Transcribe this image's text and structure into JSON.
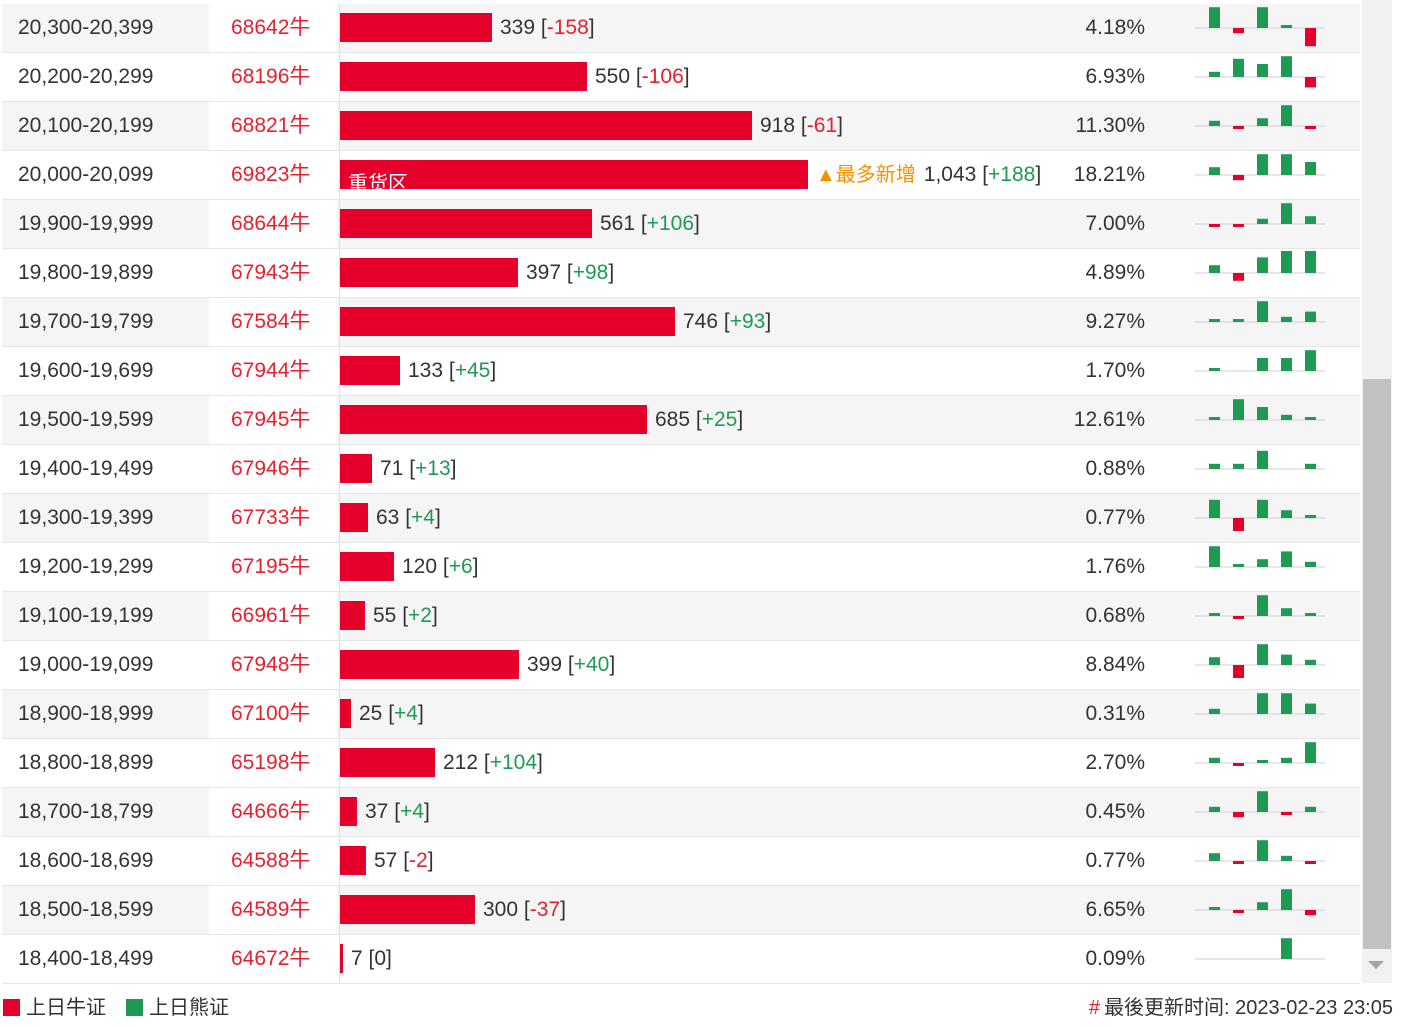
{
  "colors": {
    "bull": "#e4002b",
    "bear": "#1e9a54",
    "hot": "#f29200"
  },
  "heavy_zone_label": "重货区",
  "hot_label": "▲最多新增",
  "legend": {
    "bull_label": "上日牛证",
    "bear_label": "上日熊证"
  },
  "footer": {
    "hash": "#",
    "updated_label": "最後更新时间:",
    "updated_time": "2023-02-23 23:05"
  },
  "max_count": 1043,
  "rows": [
    {
      "range": "20,300-20,399",
      "code": "68642牛",
      "count_text": "339",
      "count": 339,
      "change": "-158",
      "pct": "4.18%",
      "spark": [
        8,
        -2,
        8,
        1,
        -7
      ]
    },
    {
      "range": "20,200-20,299",
      "code": "68196牛",
      "count_text": "550",
      "count": 550,
      "change": "-106",
      "pct": "6.93%",
      "spark": [
        2,
        7,
        5,
        8,
        -4
      ]
    },
    {
      "range": "20,100-20,199",
      "code": "68821牛",
      "count_text": "918",
      "count": 918,
      "change": "-61",
      "pct": "11.30%",
      "spark": [
        2,
        -1,
        3,
        8,
        -1
      ]
    },
    {
      "range": "20,000-20,099",
      "code": "69823牛",
      "count_text": "1,043",
      "count": 1043,
      "change": "+188",
      "pct": "18.21%",
      "spark": [
        3,
        -2,
        8,
        8,
        5
      ],
      "heavy": true,
      "hot": true
    },
    {
      "range": "19,900-19,999",
      "code": "68644牛",
      "count_text": "561",
      "count": 561,
      "change": "+106",
      "pct": "7.00%",
      "spark": [
        -1,
        -1,
        2,
        8,
        3
      ]
    },
    {
      "range": "19,800-19,899",
      "code": "67943牛",
      "count_text": "397",
      "count": 397,
      "change": "+98",
      "pct": "4.89%",
      "spark": [
        3,
        -3,
        6,
        9,
        9
      ]
    },
    {
      "range": "19,700-19,799",
      "code": "67584牛",
      "count_text": "746",
      "count": 746,
      "change": "+93",
      "pct": "9.27%",
      "spark": [
        1,
        1,
        8,
        2,
        4
      ]
    },
    {
      "range": "19,600-19,699",
      "code": "67944牛",
      "count_text": "133",
      "count": 133,
      "change": "+45",
      "pct": "1.70%",
      "spark": [
        1,
        0,
        5,
        5,
        8
      ]
    },
    {
      "range": "19,500-19,599",
      "code": "67945牛",
      "count_text": "685",
      "count": 685,
      "change": "+25",
      "pct": "12.61%",
      "spark": [
        1,
        8,
        5,
        2,
        1
      ]
    },
    {
      "range": "19,400-19,499",
      "code": "67946牛",
      "count_text": "71",
      "count": 71,
      "change": "+13",
      "pct": "0.88%",
      "spark": [
        2,
        2,
        7,
        0,
        2
      ]
    },
    {
      "range": "19,300-19,399",
      "code": "67733牛",
      "count_text": "63",
      "count": 63,
      "change": "+4",
      "pct": "0.77%",
      "spark": [
        7,
        -5,
        7,
        3,
        1
      ]
    },
    {
      "range": "19,200-19,299",
      "code": "67195牛",
      "count_text": "120",
      "count": 120,
      "change": "+6",
      "pct": "1.76%",
      "spark": [
        8,
        1,
        3,
        6,
        2
      ]
    },
    {
      "range": "19,100-19,199",
      "code": "66961牛",
      "count_text": "55",
      "count": 55,
      "change": "+2",
      "pct": "0.68%",
      "spark": [
        1,
        -1,
        8,
        3,
        1
      ]
    },
    {
      "range": "19,000-19,099",
      "code": "67948牛",
      "count_text": "399",
      "count": 399,
      "change": "+40",
      "pct": "8.84%",
      "spark": [
        3,
        -5,
        8,
        4,
        2
      ]
    },
    {
      "range": "18,900-18,999",
      "code": "67100牛",
      "count_text": "25",
      "count": 25,
      "change": "+4",
      "pct": "0.31%",
      "spark": [
        2,
        0,
        8,
        8,
        4
      ]
    },
    {
      "range": "18,800-18,899",
      "code": "65198牛",
      "count_text": "212",
      "count": 212,
      "change": "+104",
      "pct": "2.70%",
      "spark": [
        2,
        -1,
        1,
        2,
        8
      ]
    },
    {
      "range": "18,700-18,799",
      "code": "64666牛",
      "count_text": "37",
      "count": 37,
      "change": "+4",
      "pct": "0.45%",
      "spark": [
        2,
        -2,
        8,
        -1,
        2
      ]
    },
    {
      "range": "18,600-18,699",
      "code": "64588牛",
      "count_text": "57",
      "count": 57,
      "change": "-2",
      "pct": "0.77%",
      "spark": [
        3,
        -1,
        8,
        2,
        -1
      ]
    },
    {
      "range": "18,500-18,599",
      "code": "64589牛",
      "count_text": "300",
      "count": 300,
      "change": "-37",
      "pct": "6.65%",
      "spark": [
        1,
        -1,
        3,
        8,
        -2
      ]
    },
    {
      "range": "18,400-18,499",
      "code": "64672牛",
      "count_text": "7",
      "count": 7,
      "change": "0",
      "pct": "0.09%",
      "spark": [
        0,
        0,
        0,
        8,
        0
      ]
    }
  ]
}
